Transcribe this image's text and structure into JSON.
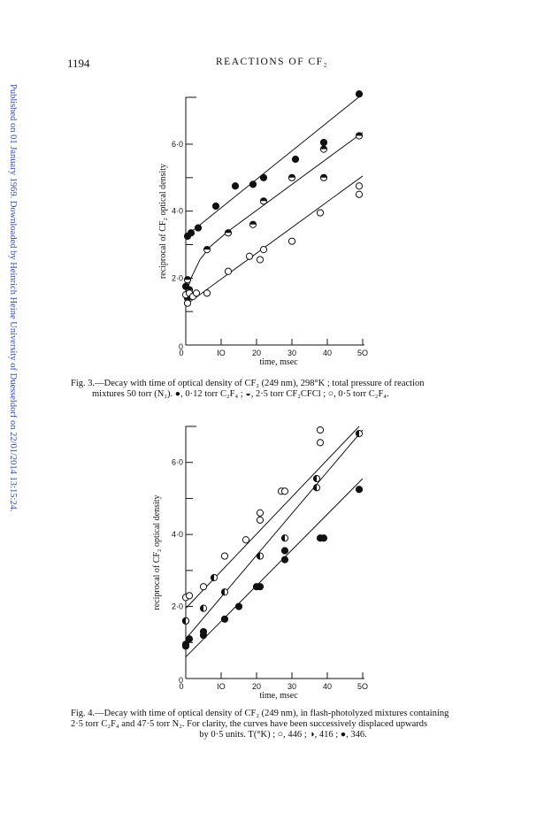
{
  "sidebar_text": "Published on 01 January 1969. Downloaded by Heinrich Heine University of Duesseldorf on 22/01/2014 13:15:24.",
  "page_number": "1194",
  "running_head": "REACTIONS OF CF₂",
  "fig3": {
    "caption_lines": [
      "Fig. 3.—Decay with time of optical density of CF₂ (249 nm), 298°K ; total pressure of reaction",
      "mixtures 50 torr (N₂).  ●, 0·12 torr C₂F₄ ; ◒, 2·5 torr CF₂CFCl ; ○, 0·5 torr C₂F₄."
    ]
  },
  "fig4": {
    "caption_lines": [
      "Fig. 4.—Decay with time of optical density of CF₂ (249 nm), in flash-photolyzed mixtures containing",
      "2·5 torr C₂F₄ and 47·5 torr N₂.  For clarity, the curves have been successively displaced upwards",
      "by 0·5 units.  T(°K) ; ○, 446 ; ◑, 416 ; ●, 346."
    ]
  },
  "chart_data": [
    {
      "type": "scatter",
      "title": "",
      "xlabel": "time, msec",
      "ylabel": "reciprocal of CF₂ optical density",
      "xlim": [
        0,
        50
      ],
      "ylim": [
        0,
        7.4
      ],
      "x_ticks": [
        0,
        10,
        20,
        30,
        40,
        50
      ],
      "x_tick_labels": [
        "0",
        "IO",
        "20",
        "30",
        "40",
        "5O"
      ],
      "y_ticks": [
        0,
        2,
        4,
        6
      ],
      "y_tick_labels": [
        "0",
        "2·0",
        "4·0",
        "6·0"
      ],
      "series": [
        {
          "marker": "filled",
          "points": [
            [
              0.5,
              3.25
            ],
            [
              1.5,
              3.35
            ],
            [
              3.5,
              3.5
            ],
            [
              8.5,
              4.15
            ],
            [
              14,
              4.75
            ],
            [
              19,
              4.8
            ],
            [
              22,
              5.0
            ],
            [
              31,
              5.55
            ],
            [
              39,
              6.05
            ],
            [
              49,
              7.5
            ],
            [
              0,
              1.75
            ],
            [
              0.5,
              1.4
            ]
          ]
        },
        {
          "marker": "half-top",
          "points": [
            [
              0.5,
              1.95
            ],
            [
              1,
              1.65
            ],
            [
              6,
              2.85
            ],
            [
              12,
              3.35
            ],
            [
              19,
              3.6
            ],
            [
              22,
              4.3
            ],
            [
              30,
              5.0
            ],
            [
              39,
              5.85
            ],
            [
              39,
              5.0
            ],
            [
              49,
              6.25
            ]
          ]
        },
        {
          "marker": "open",
          "points": [
            [
              0,
              1.5
            ],
            [
              0.5,
              1.25
            ],
            [
              1,
              1.55
            ],
            [
              2,
              1.45
            ],
            [
              3,
              1.55
            ],
            [
              6,
              1.55
            ],
            [
              12,
              2.2
            ],
            [
              18,
              2.65
            ],
            [
              21,
              2.55
            ],
            [
              22,
              2.85
            ],
            [
              30,
              3.1
            ],
            [
              38,
              3.95
            ],
            [
              49,
              4.5
            ],
            [
              49,
              4.75
            ]
          ]
        }
      ],
      "lines": [
        [
          [
            0,
            3.25
          ],
          [
            50,
            7.5
          ]
        ],
        [
          [
            12,
            3.4
          ],
          [
            50,
            6.35
          ]
        ],
        [
          [
            0,
            1.2
          ],
          [
            50,
            5.05
          ]
        ]
      ],
      "curve": [
        [
          0,
          1.5
        ],
        [
          1.5,
          2.0
        ],
        [
          4,
          2.55
        ],
        [
          7,
          2.95
        ],
        [
          12,
          3.4
        ]
      ]
    },
    {
      "type": "scatter",
      "title": "",
      "xlabel": "time, msec",
      "ylabel": "reciprocal of CF₂ optical density",
      "xlim": [
        0,
        50
      ],
      "ylim": [
        0,
        7.0
      ],
      "x_ticks": [
        0,
        10,
        20,
        30,
        40,
        50
      ],
      "x_tick_labels": [
        "0",
        "IO",
        "20",
        "30",
        "40",
        "5O"
      ],
      "y_ticks": [
        0,
        2,
        4,
        6
      ],
      "y_tick_labels": [
        "0",
        "2·0",
        "4·0",
        "6·0"
      ],
      "series": [
        {
          "marker": "open",
          "points": [
            [
              0,
              2.25
            ],
            [
              1,
              2.3
            ],
            [
              0,
              1.6
            ],
            [
              5,
              2.55
            ],
            [
              11,
              3.4
            ],
            [
              17,
              3.85
            ],
            [
              21,
              4.6
            ],
            [
              21,
              4.4
            ],
            [
              27,
              5.2
            ],
            [
              28,
              5.2
            ],
            [
              38,
              6.55
            ],
            [
              38,
              6.9
            ]
          ]
        },
        {
          "marker": "half-left",
          "points": [
            [
              0,
              1.6
            ],
            [
              5,
              1.95
            ],
            [
              8,
              2.8
            ],
            [
              11,
              2.4
            ],
            [
              21,
              3.4
            ],
            [
              28,
              3.9
            ],
            [
              37,
              5.3
            ],
            [
              37,
              5.55
            ],
            [
              49,
              6.8
            ]
          ]
        },
        {
          "marker": "filled",
          "points": [
            [
              0,
              0.95
            ],
            [
              0,
              0.9
            ],
            [
              1,
              1.1
            ],
            [
              5,
              1.2
            ],
            [
              5,
              1.3
            ],
            [
              11,
              1.65
            ],
            [
              15,
              2.0
            ],
            [
              20,
              2.55
            ],
            [
              21,
              2.55
            ],
            [
              28,
              3.3
            ],
            [
              28,
              3.55
            ],
            [
              38,
              3.9
            ],
            [
              39,
              3.9
            ],
            [
              49,
              5.25
            ]
          ]
        }
      ],
      "lines": [
        [
          [
            0,
            1.95
          ],
          [
            49,
            7.0
          ]
        ],
        [
          [
            0,
            1.1
          ],
          [
            50,
            6.9
          ]
        ],
        [
          [
            0,
            0.6
          ],
          [
            50,
            5.55
          ]
        ]
      ]
    }
  ]
}
